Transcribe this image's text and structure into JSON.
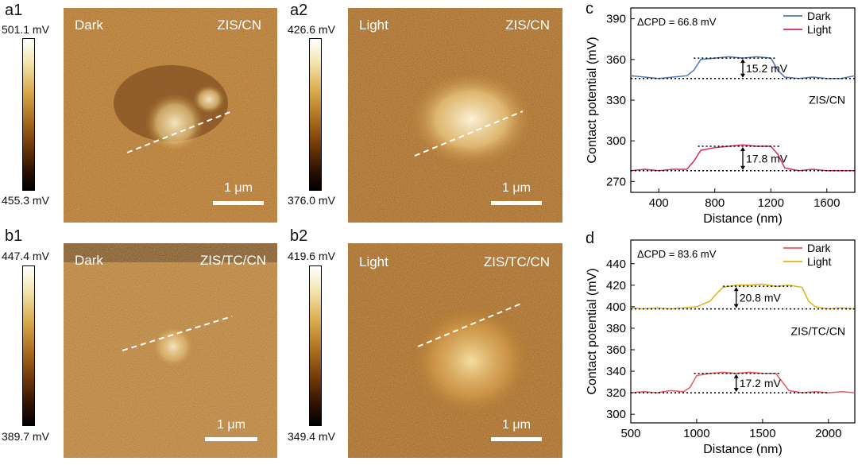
{
  "panels": {
    "a1": {
      "label": "a1",
      "left_text": "Dark",
      "right_text": "ZIS/CN",
      "cb_top": "501.1 mV",
      "cb_bottom": "455.3 mV",
      "scale": "1 μm"
    },
    "a2": {
      "label": "a2",
      "left_text": "Light",
      "right_text": "ZIS/CN",
      "cb_top": "426.6 mV",
      "cb_bottom": "376.0 mV",
      "scale": "1 μm"
    },
    "b1": {
      "label": "b1",
      "left_text": "Dark",
      "right_text": "ZIS/TC/CN",
      "cb_top": "447.4 mV",
      "cb_bottom": "389.7 mV",
      "scale": "1 μm"
    },
    "b2": {
      "label": "b2",
      "left_text": "Light",
      "right_text": "ZIS/TC/CN",
      "cb_top": "419.6 mV",
      "cb_bottom": "349.4 mV",
      "scale": "1 μm"
    },
    "c": {
      "label": "c"
    },
    "d": {
      "label": "d"
    }
  },
  "chart_data": [
    {
      "type": "line",
      "panel": "c",
      "xlabel": "Distance (nm)",
      "ylabel": "Contact potential (mV)",
      "xlim": [
        200,
        1800
      ],
      "ylim": [
        262,
        398
      ],
      "xticks": [
        400,
        800,
        1200,
        1600
      ],
      "yticks": [
        270,
        300,
        330,
        360,
        390
      ],
      "annotation": "ΔCPD = 66.8 mV",
      "sample_label": "ZIS/CN",
      "step_labels": [
        "15.2 mV",
        "17.8 mV"
      ],
      "series": [
        {
          "name": "Dark",
          "color": "#4a78b5",
          "x": [
            200,
            300,
            400,
            500,
            600,
            650,
            700,
            800,
            900,
            1000,
            1100,
            1200,
            1250,
            1300,
            1400,
            1500,
            1600,
            1700,
            1800
          ],
          "values": [
            348,
            347,
            346,
            347,
            348,
            352,
            360,
            361,
            362,
            361,
            362,
            361,
            352,
            347,
            346,
            347,
            346,
            346,
            348
          ]
        },
        {
          "name": "Light",
          "color": "#d6266d",
          "x": [
            200,
            300,
            400,
            500,
            600,
            650,
            700,
            800,
            900,
            1000,
            1100,
            1200,
            1250,
            1300,
            1400,
            1500,
            1600,
            1700,
            1800
          ],
          "values": [
            278,
            279,
            278,
            279,
            279,
            285,
            293,
            295,
            296,
            297,
            296,
            296,
            290,
            280,
            278,
            279,
            278,
            278,
            278
          ]
        }
      ]
    },
    {
      "type": "line",
      "panel": "d",
      "xlabel": "Distance (nm)",
      "ylabel": "Contact potential (mV)",
      "xlim": [
        500,
        2200
      ],
      "ylim": [
        292,
        462
      ],
      "xticks": [
        500,
        1000,
        1500,
        2000
      ],
      "yticks": [
        300,
        320,
        340,
        360,
        380,
        400,
        420,
        440
      ],
      "annotation": "ΔCPD = 83.6 mV",
      "sample_label": "ZIS/TC/CN",
      "step_labels": [
        "20.8 mV",
        "17.2 mV"
      ],
      "series": [
        {
          "name": "Dark",
          "color": "#e8585a",
          "x": [
            500,
            600,
            700,
            800,
            900,
            950,
            1000,
            1100,
            1200,
            1300,
            1400,
            1500,
            1600,
            1650,
            1700,
            1800,
            1900,
            2000,
            2100,
            2200
          ],
          "values": [
            320,
            321,
            320,
            322,
            321,
            325,
            336,
            338,
            339,
            338,
            339,
            338,
            338,
            330,
            322,
            320,
            321,
            320,
            321,
            320
          ]
        },
        {
          "name": "Light",
          "color": "#e0b312",
          "x": [
            500,
            600,
            700,
            800,
            900,
            1000,
            1100,
            1150,
            1200,
            1300,
            1400,
            1500,
            1600,
            1700,
            1800,
            1850,
            1900,
            2000,
            2100,
            2200
          ],
          "values": [
            399,
            398,
            399,
            398,
            399,
            400,
            405,
            412,
            418,
            420,
            420,
            421,
            419,
            420,
            418,
            405,
            400,
            398,
            399,
            398
          ]
        }
      ]
    }
  ]
}
